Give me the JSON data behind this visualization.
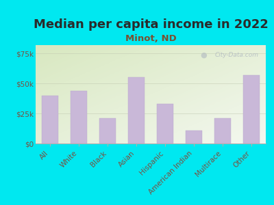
{
  "title": "Median per capita income in 2022",
  "subtitle": "Minot, ND",
  "categories": [
    "All",
    "White",
    "Black",
    "Asian",
    "Hispanic",
    "American Indian",
    "Multirace",
    "Other"
  ],
  "values": [
    40000,
    44000,
    21000,
    55000,
    33000,
    11000,
    21000,
    57000
  ],
  "bar_color": "#c9b8d8",
  "bar_edge_color": "#b8a8cc",
  "background_color": "#00e8f0",
  "plot_bg_color_topleft": "#d8e8c0",
  "plot_bg_color_topright": "#e8f0e0",
  "plot_bg_color_bottom": "#f0f4e8",
  "title_color": "#2a2a2a",
  "subtitle_color": "#7a5030",
  "tick_label_color": "#7a5040",
  "ytick_labels": [
    "$0",
    "$25k",
    "$50k",
    "$75k"
  ],
  "ytick_values": [
    0,
    25000,
    50000,
    75000
  ],
  "ylim": [
    0,
    82000
  ],
  "watermark": "City-Data.com",
  "title_fontsize": 13,
  "subtitle_fontsize": 9.5,
  "tick_fontsize": 7.5
}
